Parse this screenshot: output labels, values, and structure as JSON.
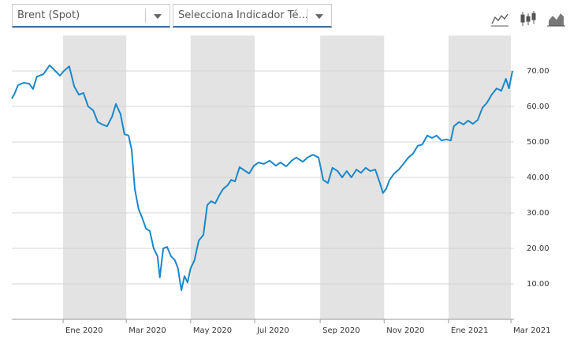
{
  "controls": {
    "dropdowns": [
      "Brent (Spot)",
      "Selecciona Indicador Té..."
    ]
  },
  "chart_data": {
    "type": "line",
    "series": [
      {
        "name": "Brent (Spot)",
        "color": "#1a87c9",
        "x": [
          2019.867,
          2019.875,
          2019.883,
          2019.898,
          2019.912,
          2019.922,
          2019.932,
          2019.949,
          2019.965,
          2019.98,
          2019.992,
          2020.002,
          2020.016,
          2020.029,
          2020.041,
          2020.053,
          2020.065,
          2020.078,
          2020.09,
          2020.102,
          2020.114,
          2020.127,
          2020.137,
          2020.149,
          2020.159,
          2020.17,
          2020.178,
          2020.186,
          2020.196,
          2020.206,
          2020.215,
          2020.225,
          2020.235,
          2020.245,
          2020.251,
          2020.26,
          2020.27,
          2020.28,
          2020.29,
          2020.298,
          2020.307,
          2020.315,
          2020.323,
          2020.331,
          2020.341,
          2020.352,
          2020.364,
          2020.374,
          2020.384,
          2020.395,
          2020.405,
          2020.415,
          2020.427,
          2020.436,
          2020.446,
          2020.458,
          2020.47,
          2020.483,
          2020.495,
          2020.507,
          2020.521,
          2020.536,
          2020.552,
          2020.564,
          2020.579,
          2020.593,
          2020.605,
          2020.622,
          2020.634,
          2020.648,
          2020.663,
          2020.675,
          2020.687,
          2020.699,
          2020.712,
          2020.724,
          2020.736,
          2020.748,
          2020.761,
          2020.773,
          2020.785,
          2020.797,
          2020.81,
          2020.822,
          2020.83,
          2020.838,
          2020.847,
          2020.859,
          2020.871,
          2020.883,
          2020.896,
          2020.908,
          2020.92,
          2020.932,
          2020.945,
          2020.957,
          2020.969,
          2020.982,
          2020.994,
          2021.006,
          2021.014,
          2021.027,
          2021.039,
          2021.051,
          2021.063,
          2021.076,
          2021.088,
          2021.1,
          2021.112,
          2021.125,
          2021.137,
          2021.149,
          2021.157,
          2021.166
        ],
        "values": [
          62.2,
          63.8,
          66.0,
          66.7,
          66.4,
          64.9,
          68.4,
          69.1,
          71.6,
          70.0,
          68.7,
          70.0,
          71.3,
          65.6,
          63.3,
          63.8,
          60.0,
          58.9,
          55.6,
          54.9,
          54.4,
          57.1,
          60.7,
          57.8,
          52.2,
          51.8,
          47.8,
          36.7,
          31.1,
          28.4,
          25.6,
          24.9,
          20.0,
          17.8,
          11.8,
          20.0,
          20.4,
          17.8,
          16.7,
          14.4,
          8.2,
          12.2,
          10.4,
          14.4,
          16.7,
          22.2,
          23.8,
          32.2,
          33.3,
          32.7,
          34.9,
          36.7,
          37.8,
          39.3,
          38.9,
          42.9,
          42.0,
          41.1,
          43.3,
          44.2,
          43.8,
          44.7,
          43.3,
          44.2,
          43.1,
          44.7,
          45.6,
          44.4,
          45.6,
          46.4,
          45.6,
          39.3,
          38.4,
          42.7,
          41.8,
          40.0,
          41.8,
          40.0,
          42.2,
          41.3,
          42.7,
          41.8,
          42.2,
          38.4,
          35.6,
          36.7,
          39.3,
          41.1,
          42.2,
          43.8,
          45.6,
          46.7,
          48.9,
          49.3,
          51.8,
          51.1,
          51.8,
          50.4,
          50.7,
          50.4,
          54.4,
          55.6,
          54.9,
          56.0,
          55.1,
          56.2,
          59.6,
          61.1,
          63.3,
          65.1,
          64.4,
          67.8,
          65.1,
          70.0
        ]
      }
    ],
    "xlim": [
      2019.867,
      2021.17
    ],
    "xticks": [
      {
        "value": 2020.0,
        "label": "Ene 2020"
      },
      {
        "value": 2020.164,
        "label": "Mar 2020"
      },
      {
        "value": 2020.331,
        "label": "May 2020"
      },
      {
        "value": 2020.497,
        "label": "Jul 2020"
      },
      {
        "value": 2020.667,
        "label": "Sep 2020"
      },
      {
        "value": 2020.833,
        "label": "Nov 2020"
      },
      {
        "value": 2021.0,
        "label": "Ene 2021"
      },
      {
        "value": 2021.162,
        "label": "Mar 2021"
      }
    ],
    "ylim": [
      0,
      80
    ],
    "yticks": [
      {
        "value": 10,
        "label": "10.00"
      },
      {
        "value": 20,
        "label": "20.00"
      },
      {
        "value": 30,
        "label": "30.00"
      },
      {
        "value": 40,
        "label": "40.00"
      },
      {
        "value": 50,
        "label": "50.00"
      },
      {
        "value": 60,
        "label": "60.00"
      },
      {
        "value": 70,
        "label": "70.00"
      }
    ],
    "grid": true,
    "band_color": "#e3e3e3"
  }
}
